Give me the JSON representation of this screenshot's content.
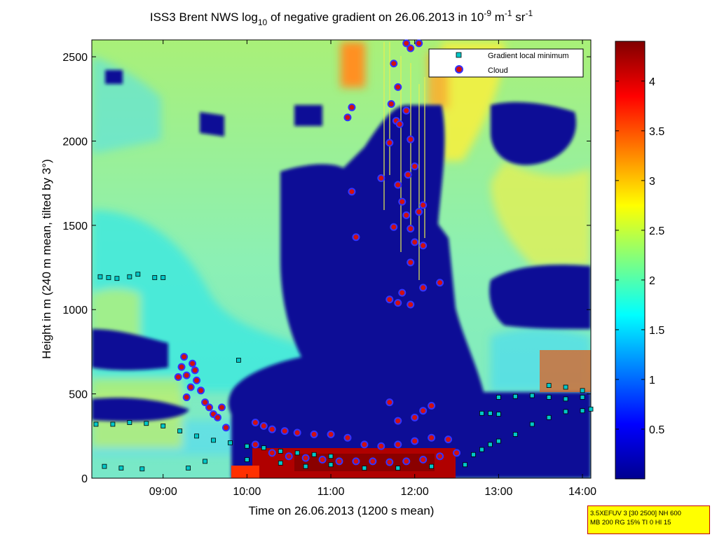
{
  "chart_data": {
    "type": "heatmap",
    "title": {
      "prefix": "ISS3 Brent NWS log",
      "log_base": "10",
      "middle": " of negative gradient on 26.06.2013 in 10",
      "exp1": "-9",
      "unit1": " m",
      "exp2": "-1",
      "unit2": " sr",
      "exp3": "-1"
    },
    "xlabel": "Time on 26.06.2013 (1200 s mean)",
    "ylabel": "Height in m (240 m mean, tilted by 3°)",
    "x_range_hours": [
      8.15,
      14.1
    ],
    "ylim": [
      0,
      2600
    ],
    "x_ticks": [
      {
        "label": "09:00",
        "value": 9
      },
      {
        "label": "10:00",
        "value": 10
      },
      {
        "label": "11:00",
        "value": 11
      },
      {
        "label": "12:00",
        "value": 12
      },
      {
        "label": "13:00",
        "value": 13
      },
      {
        "label": "14:00",
        "value": 14
      }
    ],
    "y_ticks": [
      0,
      500,
      1000,
      1500,
      2000,
      2500
    ],
    "colorbar": {
      "range": [
        0,
        4.4
      ],
      "ticks": [
        "0.5",
        "1",
        "1.5",
        "2",
        "2.5",
        "3",
        "3.5",
        "4"
      ],
      "tick_values": [
        0.5,
        1,
        1.5,
        2,
        2.5,
        3,
        3.5,
        4
      ],
      "colormap": "jet"
    },
    "legend": {
      "position": "top-right",
      "entries": [
        {
          "label": "Gradient local minimum",
          "marker": "square",
          "color": "#00c8c8"
        },
        {
          "label": "Cloud",
          "marker": "circle",
          "color": "#d01010",
          "edge": "#3333ff"
        }
      ]
    },
    "series": [
      {
        "name": "Gradient local minimum",
        "points": [
          [
            8.25,
            1195
          ],
          [
            8.35,
            1190
          ],
          [
            8.45,
            1185
          ],
          [
            8.6,
            1195
          ],
          [
            8.7,
            1210
          ],
          [
            8.9,
            1190
          ],
          [
            9.0,
            1190
          ],
          [
            8.2,
            320
          ],
          [
            8.4,
            320
          ],
          [
            8.6,
            330
          ],
          [
            8.8,
            325
          ],
          [
            9.0,
            310
          ],
          [
            9.2,
            280
          ],
          [
            9.4,
            250
          ],
          [
            9.6,
            225
          ],
          [
            9.8,
            210
          ],
          [
            10.0,
            190
          ],
          [
            10.2,
            180
          ],
          [
            10.4,
            160
          ],
          [
            10.6,
            150
          ],
          [
            10.8,
            140
          ],
          [
            11.0,
            130
          ],
          [
            8.3,
            70
          ],
          [
            8.5,
            60
          ],
          [
            8.75,
            55
          ],
          [
            9.3,
            60
          ],
          [
            9.5,
            100
          ],
          [
            10.0,
            110
          ],
          [
            10.4,
            90
          ],
          [
            10.7,
            70
          ],
          [
            11.0,
            80
          ],
          [
            11.4,
            60
          ],
          [
            11.8,
            60
          ],
          [
            12.2,
            70
          ],
          [
            12.6,
            80
          ],
          [
            12.7,
            140
          ],
          [
            12.8,
            170
          ],
          [
            12.9,
            200
          ],
          [
            13.0,
            220
          ],
          [
            13.2,
            260
          ],
          [
            13.4,
            320
          ],
          [
            13.6,
            360
          ],
          [
            13.8,
            395
          ],
          [
            14.0,
            400
          ],
          [
            14.1,
            410
          ],
          [
            12.8,
            385
          ],
          [
            12.9,
            385
          ],
          [
            13.0,
            380
          ],
          [
            13.0,
            480
          ],
          [
            13.2,
            485
          ],
          [
            13.4,
            490
          ],
          [
            13.6,
            480
          ],
          [
            13.8,
            470
          ],
          [
            14.0,
            480
          ],
          [
            13.6,
            550
          ],
          [
            13.8,
            540
          ],
          [
            14.0,
            520
          ],
          [
            9.9,
            700
          ]
        ]
      },
      {
        "name": "Cloud",
        "points": [
          [
            9.25,
            720
          ],
          [
            9.22,
            660
          ],
          [
            9.28,
            610
          ],
          [
            9.35,
            680
          ],
          [
            9.38,
            640
          ],
          [
            9.4,
            580
          ],
          [
            9.33,
            540
          ],
          [
            9.45,
            520
          ],
          [
            9.5,
            450
          ],
          [
            9.55,
            420
          ],
          [
            9.6,
            380
          ],
          [
            9.65,
            360
          ],
          [
            9.7,
            420
          ],
          [
            9.75,
            300
          ],
          [
            9.28,
            480
          ],
          [
            9.18,
            600
          ],
          [
            10.1,
            330
          ],
          [
            10.2,
            310
          ],
          [
            10.3,
            290
          ],
          [
            10.45,
            280
          ],
          [
            10.6,
            270
          ],
          [
            10.8,
            260
          ],
          [
            11.0,
            260
          ],
          [
            11.2,
            240
          ],
          [
            11.4,
            200
          ],
          [
            11.6,
            190
          ],
          [
            11.8,
            200
          ],
          [
            12.0,
            220
          ],
          [
            12.2,
            240
          ],
          [
            12.4,
            230
          ],
          [
            10.1,
            200
          ],
          [
            10.3,
            150
          ],
          [
            10.5,
            130
          ],
          [
            10.7,
            120
          ],
          [
            10.9,
            110
          ],
          [
            11.1,
            100
          ],
          [
            11.3,
            100
          ],
          [
            11.5,
            100
          ],
          [
            11.7,
            95
          ],
          [
            11.9,
            100
          ],
          [
            12.1,
            110
          ],
          [
            12.3,
            130
          ],
          [
            12.5,
            150
          ],
          [
            11.2,
            2140
          ],
          [
            11.25,
            2200
          ],
          [
            11.25,
            1700
          ],
          [
            11.3,
            1430
          ],
          [
            11.9,
            2580
          ],
          [
            11.95,
            2550
          ],
          [
            12.05,
            2580
          ],
          [
            11.75,
            2460
          ],
          [
            11.8,
            2320
          ],
          [
            11.72,
            2220
          ],
          [
            11.78,
            2120
          ],
          [
            11.82,
            2100
          ],
          [
            11.9,
            2180
          ],
          [
            11.95,
            2010
          ],
          [
            11.6,
            1780
          ],
          [
            11.7,
            1990
          ],
          [
            11.8,
            1740
          ],
          [
            11.92,
            1800
          ],
          [
            12.0,
            1850
          ],
          [
            11.85,
            1640
          ],
          [
            11.9,
            1560
          ],
          [
            12.05,
            1580
          ],
          [
            12.1,
            1620
          ],
          [
            11.75,
            1490
          ],
          [
            11.95,
            1480
          ],
          [
            12.0,
            1400
          ],
          [
            12.1,
            1380
          ],
          [
            11.95,
            1280
          ],
          [
            11.85,
            1100
          ],
          [
            11.7,
            1060
          ],
          [
            11.8,
            1040
          ],
          [
            11.95,
            1030
          ],
          [
            12.1,
            1130
          ],
          [
            12.3,
            1160
          ],
          [
            11.7,
            450
          ],
          [
            11.8,
            340
          ],
          [
            12.0,
            360
          ],
          [
            12.1,
            400
          ],
          [
            12.2,
            430
          ]
        ]
      }
    ]
  },
  "config_box": {
    "line1": "3.5XEFUV 3 [30 2500] NH 600",
    "line2": "MB 200 RG 15% TI 0 HI 15"
  }
}
